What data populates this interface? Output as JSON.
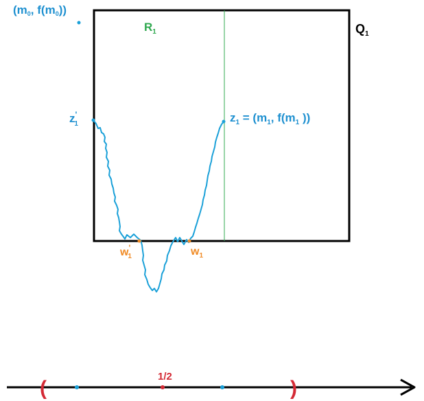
{
  "colors": {
    "curve": "#1aa0d8",
    "label_blue": "#1e90d0",
    "orange": "#f08a24",
    "green": "#2fa84f",
    "red": "#d42a35",
    "black": "#000000"
  },
  "labels": {
    "m0_point": {
      "main": "(m",
      "sub0": "0",
      "mid": ", f(m",
      "sub1": "0",
      "end": "))"
    },
    "R1": {
      "main": "R",
      "sub": "1"
    },
    "Q1": {
      "main": "Q",
      "sub": "1"
    },
    "z1_prime": {
      "main": "z",
      "prime": "'",
      "sub": "1"
    },
    "z1": {
      "main": "z",
      "sub0": "1",
      "mid": " = (m",
      "sub1": "1",
      "mid2": ", f(m",
      "sub2": "1",
      "end": " ))"
    },
    "w1_prime": {
      "main": "w",
      "prime": "'",
      "sub": "1"
    },
    "w1": {
      "main": "w",
      "sub": "1"
    },
    "half": "1/2",
    "left_paren": "(",
    "right_paren": ")"
  }
}
